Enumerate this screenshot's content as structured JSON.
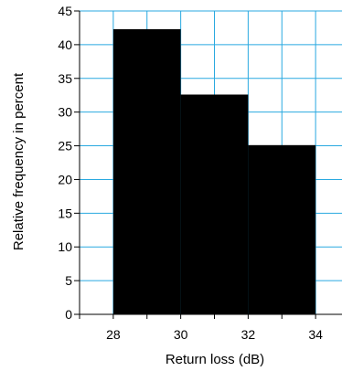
{
  "chart_data": {
    "type": "bar",
    "title": "",
    "xlabel": "Return loss (dB)",
    "ylabel": "Relative frequency in percent",
    "xlim": [
      27,
      35
    ],
    "ylim": [
      0,
      45
    ],
    "x_ticks": [
      28,
      30,
      32,
      34
    ],
    "y_ticks": [
      0,
      5,
      10,
      15,
      20,
      25,
      30,
      35,
      40,
      45
    ],
    "bins": [
      {
        "x0": 28,
        "x1": 30,
        "value": 42.3
      },
      {
        "x0": 30,
        "x1": 32,
        "value": 32.6
      },
      {
        "x0": 32,
        "x1": 34,
        "value": 25.1
      }
    ],
    "grid": true,
    "colors": {
      "bar": "#000000",
      "grid": "#29a9e0",
      "axis": "#000000"
    }
  }
}
